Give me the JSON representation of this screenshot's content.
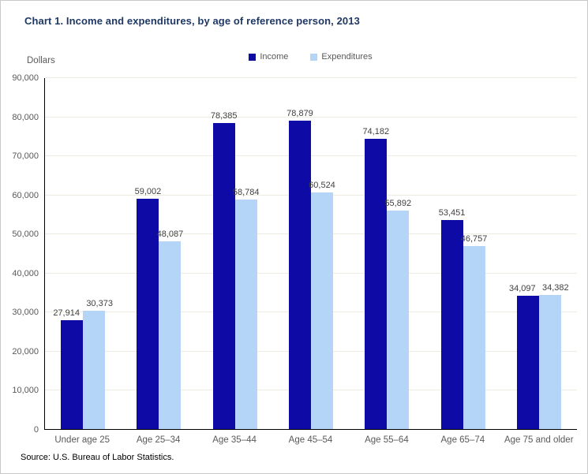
{
  "figure": {
    "title": "Chart 1. Income and expenditures, by age of reference person, 2013",
    "y_unit_label": "Dollars",
    "source_note": "Source: U.S. Bureau of Labor Statistics."
  },
  "colors": {
    "title_text": "#1F3864",
    "income_bar": "#0E0AA6",
    "expenditures_bar": "#B5D5F8",
    "gridline": "#EDEBE2",
    "axis_line": "#000000",
    "tick_label_text": "#595959",
    "data_label_text": "#404040",
    "figure_border": "#C9C9C9"
  },
  "chart_data": {
    "type": "bar",
    "title": "Chart 1. Income and expenditures, by age of reference person, 2013",
    "xlabel": "",
    "ylabel": "Dollars",
    "categories": [
      "Under age 25",
      "Age 25–34",
      "Age 35–44",
      "Age 45–54",
      "Age 55–64",
      "Age 65–74",
      "Age 75 and older"
    ],
    "series": [
      {
        "name": "Income",
        "color": "#0E0AA6",
        "values": [
          27914,
          59002,
          78385,
          78879,
          74182,
          53451,
          34097
        ]
      },
      {
        "name": "Expenditures",
        "color": "#B5D5F8",
        "values": [
          30373,
          48087,
          58784,
          60524,
          55892,
          46757,
          34382
        ]
      }
    ],
    "ylim": [
      0,
      90000
    ],
    "ytick_step": 10000,
    "ytick_labels": [
      "0",
      "10,000",
      "20,000",
      "30,000",
      "40,000",
      "50,000",
      "60,000",
      "70,000",
      "80,000",
      "90,000"
    ],
    "grid": true,
    "legend_position": "top-center",
    "data_labels": true,
    "source": "Source: U.S. Bureau of Labor Statistics."
  }
}
